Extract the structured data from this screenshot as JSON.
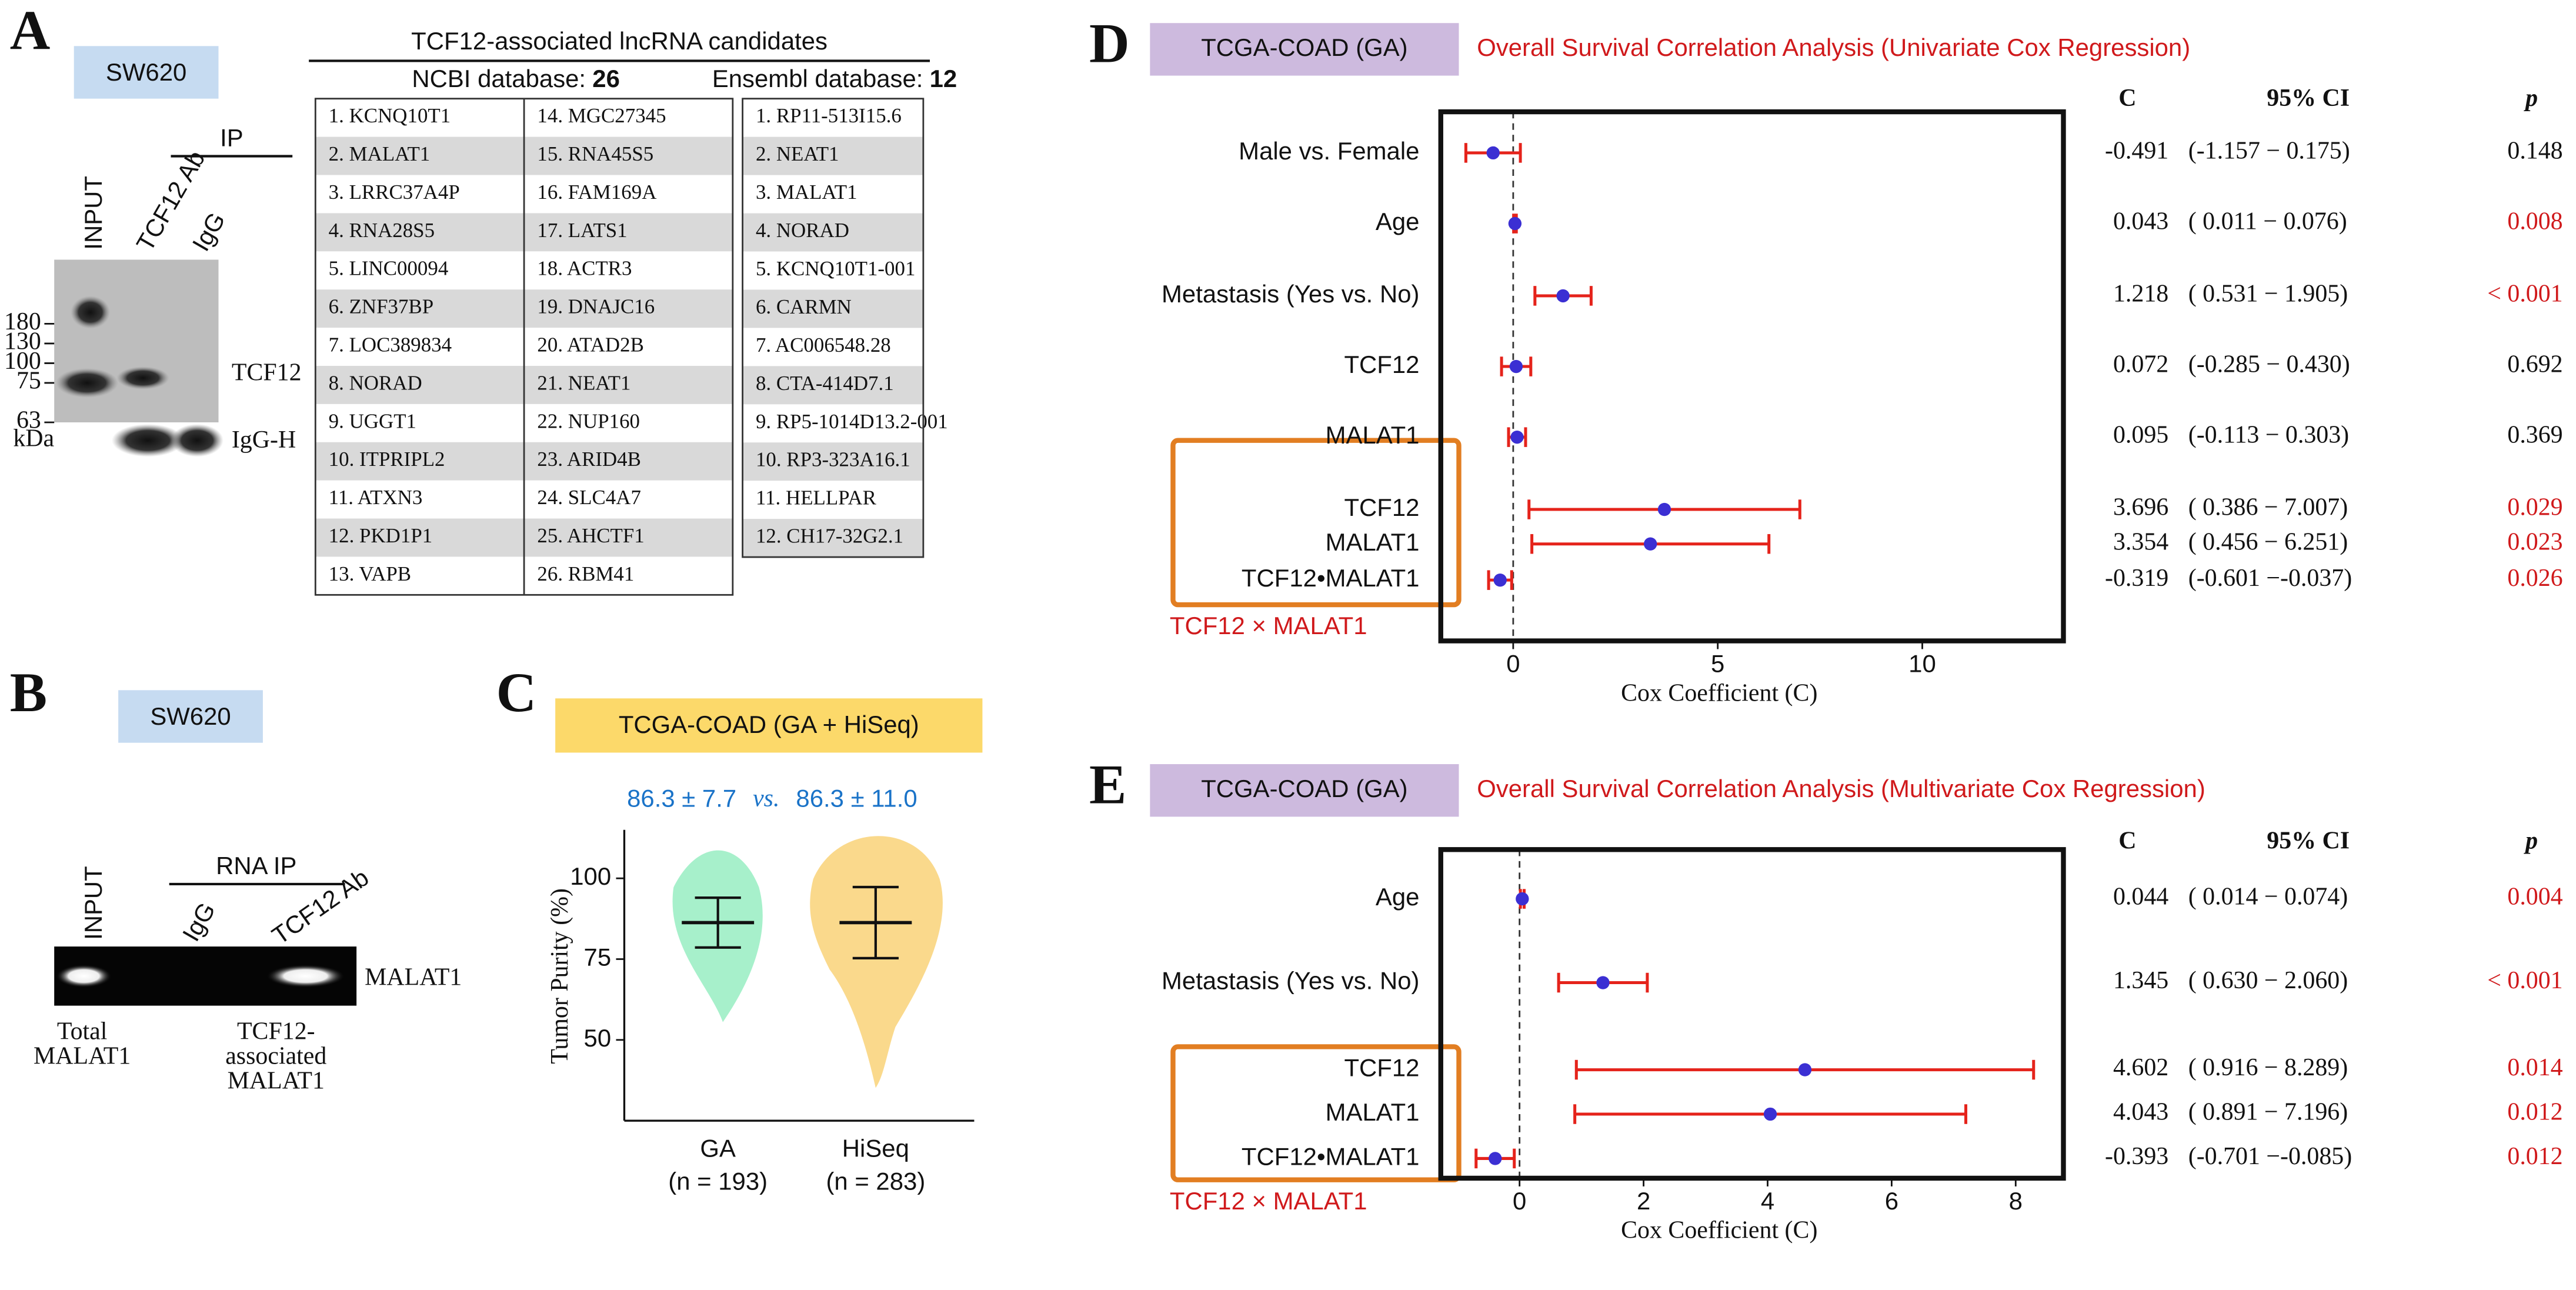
{
  "panel_a": {
    "label": "A",
    "cell_line": "SW620",
    "input": "INPUT",
    "ip": "IP",
    "ab": "TCF12 Ab",
    "igg": "IgG",
    "markers": [
      180,
      130,
      100,
      75,
      63
    ],
    "kda": "kDa",
    "band_top": "TCF12",
    "band_bottom": "IgG-H",
    "table": {
      "title": "TCF12-associated lncRNA candidates",
      "ncbi_label": "NCBI database:",
      "ncbi_count": 26,
      "ensembl_label": "Ensembl database:",
      "ensembl_count": 12,
      "ncbi_items": [
        "1. KCNQ10T1",
        "2. MALAT1",
        "3. LRRC37A4P",
        "4. RNA28S5",
        "5. LINC00094",
        "6. ZNF37BP",
        "7. LOC389834",
        "8. NORAD",
        "9. UGGT1",
        "10. ITPRIPL2",
        "11. ATXN3",
        "12. PKD1P1",
        "13. VAPB",
        "14. MGC27345",
        "15. RNA45S5",
        "16. FAM169A",
        "17. LATS1",
        "18. ACTR3",
        "19. DNAJC16",
        "20. ATAD2B",
        "21. NEAT1",
        "22. NUP160",
        "23. ARID4B",
        "24. SLC4A7",
        "25. AHCTF1",
        "26. RBM41"
      ],
      "ensembl_items": [
        "1. RP11-513I15.6",
        "2. NEAT1",
        "3. MALAT1",
        "4. NORAD",
        "5. KCNQ10T1-001",
        "6. CARMN",
        "7. AC006548.28",
        "8. CTA-414D7.1",
        "9. RP5-1014D13.2-001",
        "10. RP3-323A16.1",
        "11. HELLPAR",
        "12. CH17-32G2.1"
      ]
    }
  },
  "panel_b": {
    "label": "B",
    "cell_line": "SW620",
    "input": "INPUT",
    "rna_ip": "RNA IP",
    "igg": "IgG",
    "ab": "TCF12 Ab",
    "band": "MALAT1",
    "caption_left": [
      "Total",
      "MALAT1"
    ],
    "caption_right": [
      "TCF12-",
      "associated",
      "MALAT1"
    ]
  },
  "panel_c": {
    "label": "C",
    "title": "TCGA-COAD (GA + HiSeq)",
    "stats_left": "86.3 ± 7.7",
    "stats_vs": "vs.",
    "stats_right": "86.3 ± 11.0",
    "y_label": "Tumor Purity (%)",
    "ylim": [
      25,
      115
    ],
    "yticks": [
      50,
      75,
      100
    ],
    "groups": [
      {
        "name": "GA",
        "n_label": "(n = 193)",
        "mean": 86.3,
        "sd": 7.7,
        "color": "#5fe3a1"
      },
      {
        "name": "HiSeq",
        "n_label": "(n = 283)",
        "mean": 86.3,
        "sd": 11.0,
        "color": "#f6b92e"
      }
    ]
  },
  "panel_d": {
    "label": "D",
    "cohort": "TCGA-COAD (GA)",
    "title": "Overall Survival Correlation Analysis (Univariate Cox Regression)",
    "col_c": "C",
    "col_ci": "95% CI",
    "col_p": "p",
    "x_label": "Cox Coefficient (C)",
    "xlim": [
      -1.77,
      13.45
    ],
    "xticks": [
      0,
      5,
      10
    ],
    "interaction_label": "TCF12 × MALAT1",
    "ci_color": "#e5231b",
    "point_color": "#3b2fd3",
    "rows": [
      {
        "label": "Male vs. Female",
        "c": -0.491,
        "lo": -1.157,
        "hi": 0.175,
        "ci_label": "(-1.157 − 0.175)",
        "p": "0.148",
        "p_color": "#111111"
      },
      {
        "label": "Age",
        "c": 0.043,
        "lo": 0.011,
        "hi": 0.076,
        "ci_label": "( 0.011 − 0.076)",
        "p": "0.008",
        "p_color": "#d0191b"
      },
      {
        "label": "Metastasis (Yes vs. No)",
        "c": 1.218,
        "lo": 0.531,
        "hi": 1.905,
        "ci_label": "( 0.531 − 1.905)",
        "p": "< 0.001",
        "p_color": "#d0191b"
      },
      {
        "label": "TCF12",
        "c": 0.072,
        "lo": -0.285,
        "hi": 0.43,
        "ci_label": "(-0.285 − 0.430)",
        "p": "0.692",
        "p_color": "#111111"
      },
      {
        "label": "MALAT1",
        "c": 0.095,
        "lo": -0.113,
        "hi": 0.303,
        "ci_label": "(-0.113 − 0.303)",
        "p": "0.369",
        "p_color": "#111111"
      },
      {
        "label": "TCF12",
        "c": 3.696,
        "lo": 0.386,
        "hi": 7.007,
        "ci_label": "( 0.386 − 7.007)",
        "p": "0.029",
        "p_color": "#d0191b"
      },
      {
        "label": "MALAT1",
        "c": 3.354,
        "lo": 0.456,
        "hi": 6.251,
        "ci_label": "( 0.456 − 6.251)",
        "p": "0.023",
        "p_color": "#d0191b"
      },
      {
        "label": "TCF12•MALAT1",
        "c": -0.319,
        "lo": -0.601,
        "hi": -0.037,
        "ci_label": "(-0.601 −-0.037)",
        "p": "0.026",
        "p_color": "#d0191b"
      }
    ]
  },
  "panel_e": {
    "label": "E",
    "cohort": "TCGA-COAD (GA)",
    "title": "Overall Survival Correlation Analysis (Multivariate Cox Regression)",
    "col_c": "C",
    "col_ci": "95% CI",
    "col_p": "p",
    "x_label": "Cox Coefficient (C)",
    "xlim": [
      -1.27,
      8.77
    ],
    "xticks": [
      0,
      2,
      4,
      6,
      8
    ],
    "interaction_label": "TCF12 × MALAT1",
    "ci_color": "#e5231b",
    "point_color": "#3b2fd3",
    "rows": [
      {
        "label": "Age",
        "c": 0.044,
        "lo": 0.014,
        "hi": 0.074,
        "ci_label": "( 0.014 − 0.074)",
        "p": "0.004",
        "p_color": "#d0191b"
      },
      {
        "label": "Metastasis (Yes vs. No)",
        "c": 1.345,
        "lo": 0.63,
        "hi": 2.06,
        "ci_label": "( 0.630 − 2.060)",
        "p": "< 0.001",
        "p_color": "#d0191b"
      },
      {
        "label": "TCF12",
        "c": 4.602,
        "lo": 0.916,
        "hi": 8.289,
        "ci_label": "( 0.916 − 8.289)",
        "p": "0.014",
        "p_color": "#d0191b"
      },
      {
        "label": "MALAT1",
        "c": 4.043,
        "lo": 0.891,
        "hi": 7.196,
        "ci_label": "( 0.891 − 7.196)",
        "p": "0.012",
        "p_color": "#d0191b"
      },
      {
        "label": "TCF12•MALAT1",
        "c": -0.393,
        "lo": -0.701,
        "hi": -0.085,
        "ci_label": "(-0.701 −-0.085)",
        "p": "0.012",
        "p_color": "#d0191b"
      }
    ]
  }
}
